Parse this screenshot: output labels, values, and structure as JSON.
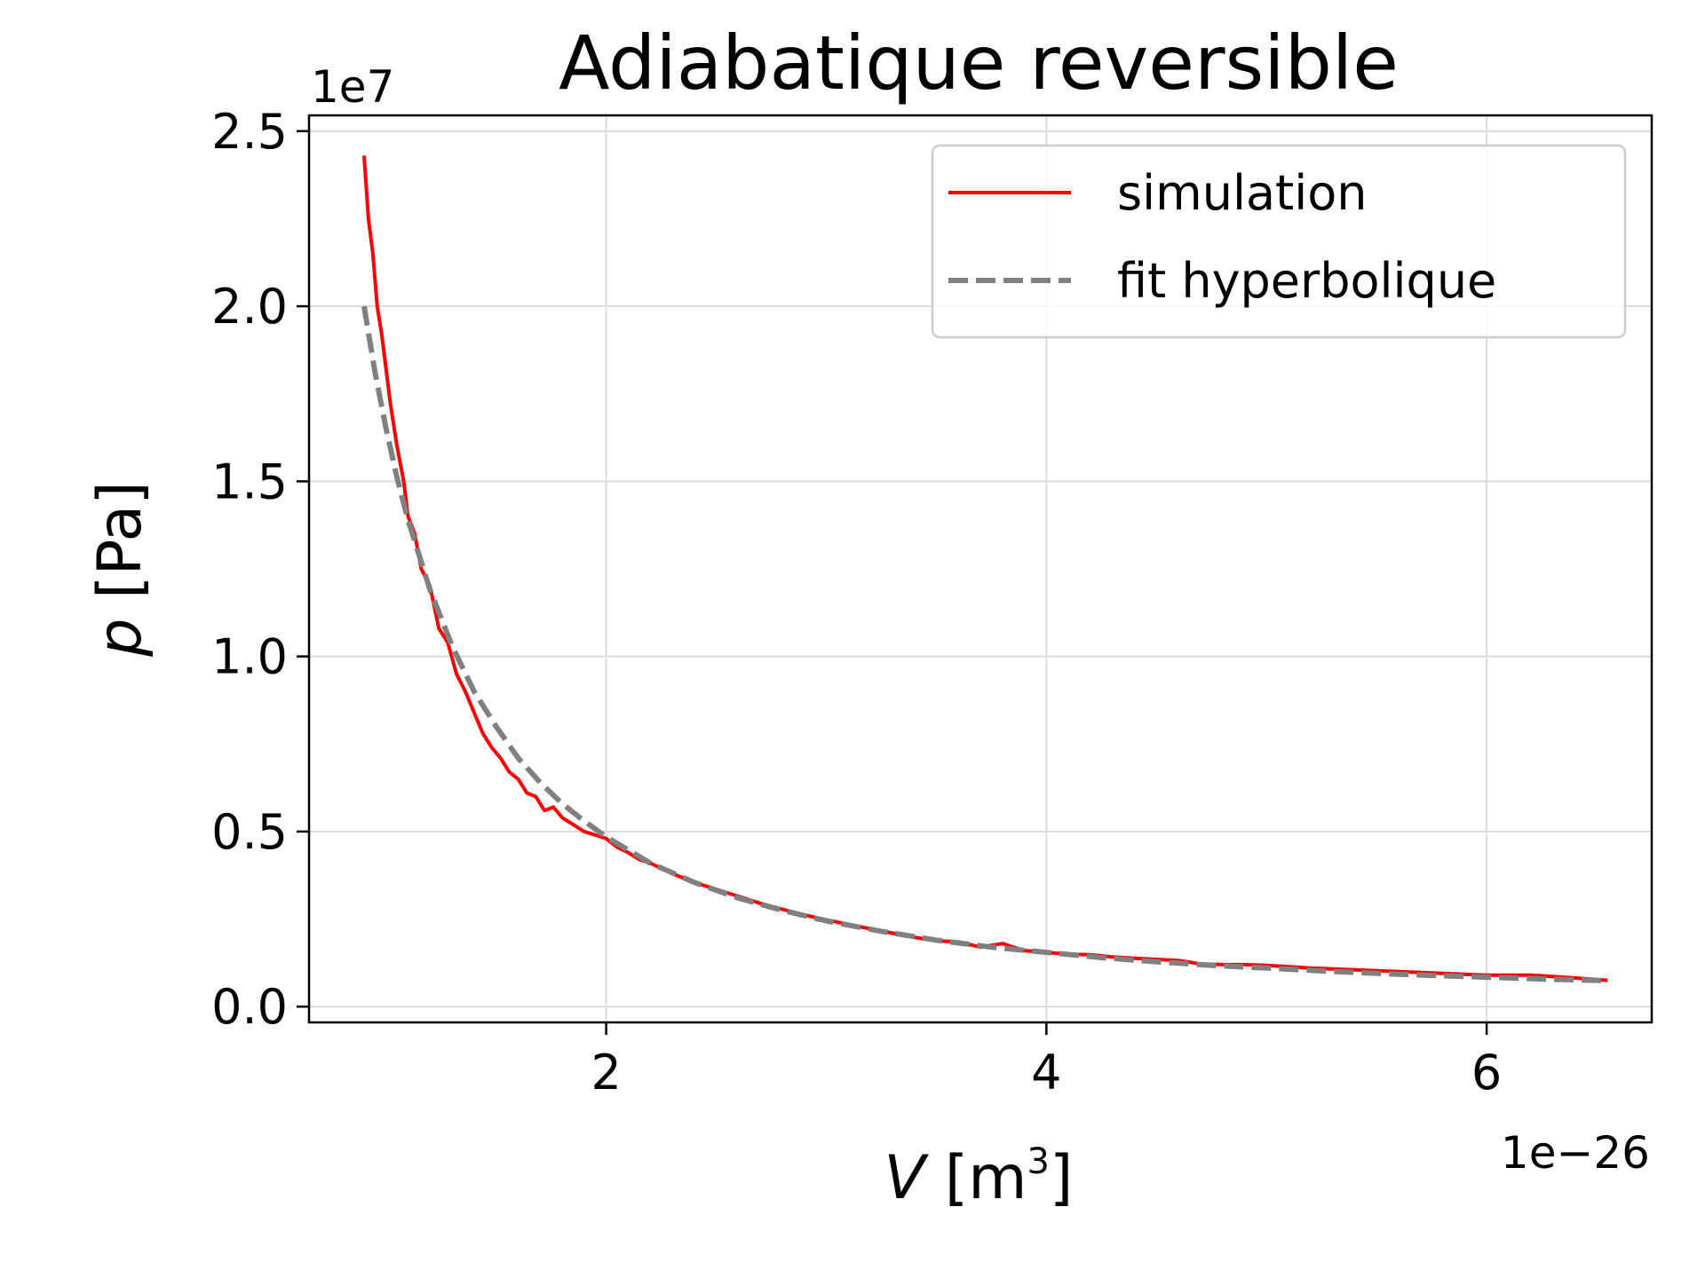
{
  "chart_data": {
    "type": "line",
    "title": "Adiabatique reversible",
    "xlabel": {
      "symbol": "V",
      "unit_open": " [m",
      "unit_sup": "3",
      "unit_close": "]"
    },
    "ylabel": {
      "symbol": "p",
      "unit": " [Pa]"
    },
    "x_offset_label": "1e−26",
    "y_offset_label": "1e7",
    "xlim": [
      0.65,
      6.75
    ],
    "ylim": [
      -0.045,
      2.545
    ],
    "x_ticks": [
      2,
      4,
      6
    ],
    "x_tick_labels": [
      "2",
      "4",
      "6"
    ],
    "y_ticks": [
      0.0,
      0.5,
      1.0,
      1.5,
      2.0,
      2.5
    ],
    "y_tick_labels": [
      "0.0",
      "0.5",
      "1.0",
      "1.5",
      "2.0",
      "2.5"
    ],
    "grid": true,
    "legend_position": "top-right",
    "series": [
      {
        "name": "simulation",
        "color": "#ff0000",
        "style": "solid",
        "x": [
          0.9,
          0.92,
          0.94,
          0.96,
          0.98,
          1.0,
          1.02,
          1.05,
          1.08,
          1.1,
          1.13,
          1.16,
          1.2,
          1.24,
          1.28,
          1.32,
          1.36,
          1.4,
          1.44,
          1.48,
          1.52,
          1.56,
          1.6,
          1.64,
          1.68,
          1.72,
          1.76,
          1.8,
          1.85,
          1.9,
          1.95,
          2.0,
          2.05,
          2.1,
          2.15,
          2.2,
          2.3,
          2.4,
          2.5,
          2.6,
          2.7,
          2.8,
          2.9,
          3.0,
          3.1,
          3.2,
          3.3,
          3.4,
          3.5,
          3.6,
          3.7,
          3.8,
          3.9,
          4.0,
          4.1,
          4.2,
          4.3,
          4.4,
          4.5,
          4.6,
          4.7,
          4.8,
          4.9,
          5.0,
          5.2,
          5.4,
          5.6,
          5.8,
          6.0,
          6.2,
          6.4,
          6.55
        ],
        "y": [
          2.43,
          2.25,
          2.15,
          2.0,
          1.92,
          1.82,
          1.72,
          1.6,
          1.5,
          1.4,
          1.35,
          1.25,
          1.2,
          1.08,
          1.04,
          0.95,
          0.9,
          0.84,
          0.78,
          0.74,
          0.71,
          0.67,
          0.65,
          0.61,
          0.6,
          0.56,
          0.57,
          0.54,
          0.52,
          0.5,
          0.49,
          0.48,
          0.455,
          0.44,
          0.42,
          0.41,
          0.38,
          0.355,
          0.335,
          0.315,
          0.295,
          0.278,
          0.262,
          0.248,
          0.235,
          0.222,
          0.21,
          0.198,
          0.188,
          0.185,
          0.17,
          0.18,
          0.16,
          0.155,
          0.15,
          0.148,
          0.142,
          0.138,
          0.135,
          0.132,
          0.122,
          0.12,
          0.12,
          0.118,
          0.11,
          0.105,
          0.1,
          0.095,
          0.09,
          0.09,
          0.082,
          0.075
        ]
      },
      {
        "name": "fit hyperbolique",
        "color": "#808080",
        "style": "dashed",
        "x": [
          0.9,
          0.95,
          1.0,
          1.05,
          1.1,
          1.2,
          1.3,
          1.4,
          1.5,
          1.6,
          1.7,
          1.8,
          1.9,
          2.0,
          2.2,
          2.4,
          2.6,
          2.8,
          3.0,
          3.25,
          3.5,
          3.75,
          4.0,
          4.25,
          4.5,
          4.75,
          5.0,
          5.25,
          5.5,
          5.75,
          6.0,
          6.25,
          6.55
        ],
        "y": [
          2.0,
          1.81,
          1.65,
          1.51,
          1.39,
          1.19,
          1.03,
          0.9,
          0.8,
          0.71,
          0.64,
          0.58,
          0.53,
          0.485,
          0.41,
          0.355,
          0.31,
          0.275,
          0.245,
          0.215,
          0.19,
          0.17,
          0.155,
          0.14,
          0.128,
          0.118,
          0.11,
          0.102,
          0.095,
          0.089,
          0.084,
          0.079,
          0.074
        ]
      }
    ]
  }
}
